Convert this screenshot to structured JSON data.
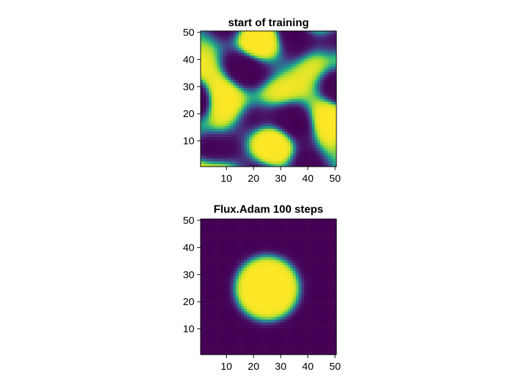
{
  "chart_data": [
    {
      "type": "heatmap",
      "title": "start of training",
      "xlabel": "",
      "ylabel": "",
      "xlim": [
        0.5,
        50.5
      ],
      "ylim": [
        0.5,
        50.5
      ],
      "xticks": [
        10,
        20,
        30,
        40,
        50
      ],
      "yticks": [
        10,
        20,
        30,
        40,
        50
      ],
      "colormap": "viridis",
      "colors": {
        "low": "#440154",
        "high": "#fde725"
      },
      "grid": false,
      "legend": "none",
      "pattern": "random stripe/blob pattern (values approximately 0 to 1)"
    },
    {
      "type": "heatmap",
      "title": "Flux.Adam 100 steps",
      "xlabel": "",
      "ylabel": "",
      "xlim": [
        0.5,
        50.5
      ],
      "ylim": [
        0.5,
        50.5
      ],
      "xticks": [
        10,
        20,
        30,
        40,
        50
      ],
      "yticks": [
        10,
        20,
        30,
        40,
        50
      ],
      "colormap": "viridis",
      "colors": {
        "low": "#440154",
        "high": "#fde725"
      },
      "grid": false,
      "legend": "none",
      "pattern": "single filled circle (value ~1) on background (value ~0)",
      "circle": {
        "center_x": 25,
        "center_y": 25,
        "radius": 12
      }
    }
  ]
}
